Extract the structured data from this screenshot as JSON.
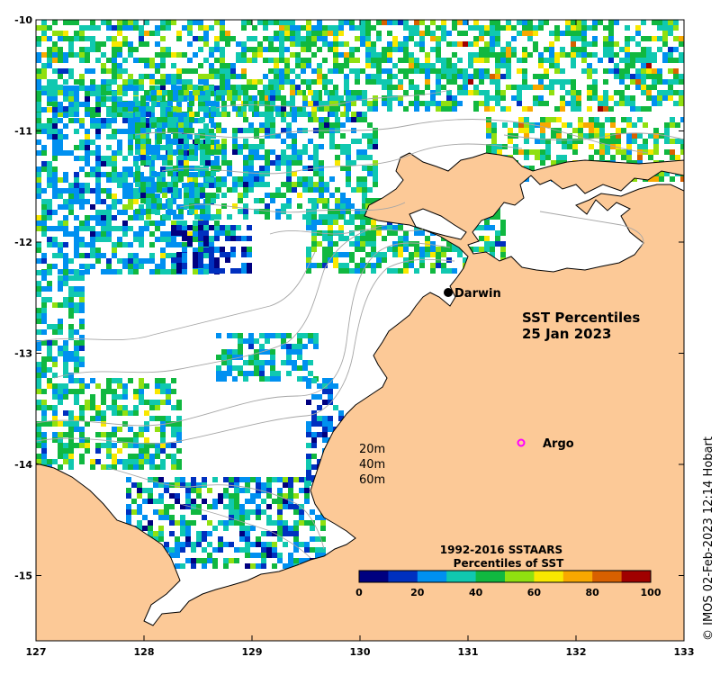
{
  "map": {
    "title_line1": "SST Percentiles",
    "title_line2": "25 Jan 2023",
    "x_ticks": [
      "127",
      "128",
      "129",
      "130",
      "131",
      "132",
      "133"
    ],
    "y_ticks": [
      "-10",
      "-11",
      "-12",
      "-13",
      "-14",
      "-15"
    ],
    "x_range": [
      127,
      133
    ],
    "y_range": [
      -10,
      -15.6
    ],
    "colors": {
      "land": "#fcc997",
      "no_data": "#ffffff",
      "coastline": "#000000",
      "bathymetry": "#a6a6a6"
    }
  },
  "places": [
    {
      "name": "Darwin",
      "lon": 130.84,
      "lat": -12.46,
      "marker": "filled-circle",
      "color": "#000000"
    },
    {
      "name": "Argo",
      "lon": 131.49,
      "lat": -13.81,
      "marker": "open-circle",
      "color": "#ff00ff"
    }
  ],
  "depth_legend": [
    "20m",
    "40m",
    "60m"
  ],
  "colorbar": {
    "title_line1": "1992-2016 SSTAARS",
    "title_line2": "Percentiles of SST",
    "tick_labels": [
      "0",
      "20",
      "40",
      "60",
      "80",
      "100"
    ],
    "colors": [
      "#000080",
      "#0030c0",
      "#0090f0",
      "#10c8b0",
      "#10b840",
      "#90e010",
      "#f8e800",
      "#f8a800",
      "#d86000",
      "#a00000"
    ]
  },
  "credit": "© IMOS 02-Feb-2023 12:14 Hobart"
}
